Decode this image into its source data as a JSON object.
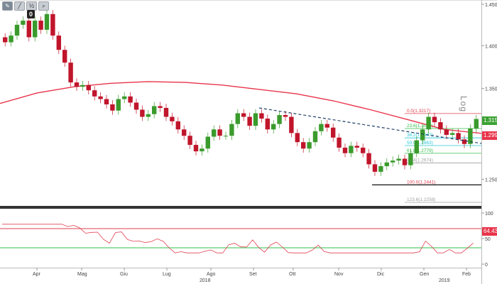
{
  "toolbar": {
    "buttons": [
      {
        "icon": "pencil-icon",
        "glyph": "✎"
      },
      {
        "icon": "line-tool-icon",
        "glyph": "╱"
      },
      {
        "icon": "fib-tool-icon",
        "glyph": "½"
      },
      {
        "icon": "zoom-icon",
        "glyph": "⌕"
      }
    ],
    "badge": "0"
  },
  "log_label": "Log",
  "colors": {
    "candle_up": "#3a9b2c",
    "candle_down": "#c0152b",
    "ma_line": "#e8344a",
    "trend_line": "#1f3f66",
    "rsi_line": "#e04050",
    "rsi_upper": "#e04050",
    "rsi_lower": "#32c04a",
    "fib_red": "#e04050",
    "fib_green": "#32c04a",
    "fib_cyan": "#27c8d8",
    "fib_gray": "#a0a0a0",
    "current_price_bg": "#3aa232",
    "ma_tag_bg": "#e8344a",
    "rsi_tag_bg": "#e8344a"
  },
  "tags": {
    "price": "1.3156",
    "ma": "1.2997",
    "rsi": "64.4317"
  },
  "chart_data": {
    "type": "candlestick",
    "scale": "log",
    "price_axis": {
      "ticks": [
        "1.4500",
        "1.4000",
        "1.3500",
        "1.2500"
      ],
      "range": [
        1.21,
        1.46
      ]
    },
    "rsi_axis": {
      "ticks": [
        "100",
        "50",
        "0"
      ],
      "range": [
        0,
        100
      ],
      "upper": 70,
      "lower": 30
    },
    "x_axis": {
      "months": [
        "Apr",
        "Mag",
        "Giu",
        "Lug",
        "Ago",
        "Set",
        "Ott",
        "Nov",
        "Dic",
        "Gen",
        "Feb"
      ],
      "years": [
        "2018",
        "2019"
      ]
    },
    "fib_levels": [
      {
        "label": "0.0(1.3217)",
        "value": 1.3217
      },
      {
        "label": "23.6(1.3050)",
        "value": 1.305
      },
      {
        "label": "38.2(1.2947)",
        "value": 1.2947
      },
      {
        "label": "50.0(1.2863)",
        "value": 1.2863
      },
      {
        "label": "61.8(1.2779)",
        "value": 1.2779
      },
      {
        "label": "76.4(1.2674)",
        "value": 1.2674
      },
      {
        "label": "100.0(1.2441)",
        "value": 1.2441
      },
      {
        "label": "123.6(1.2258)",
        "value": 1.2258
      }
    ],
    "moving_average": [
      1.333,
      1.345,
      1.352,
      1.356,
      1.358,
      1.357,
      1.354,
      1.349,
      1.344,
      1.336,
      1.326,
      1.315,
      1.304,
      1.2997
    ],
    "candles_close": [
      1.404,
      1.412,
      1.425,
      1.43,
      1.41,
      1.43,
      1.419,
      1.438,
      1.412,
      1.395,
      1.38,
      1.357,
      1.352,
      1.354,
      1.348,
      1.341,
      1.338,
      1.332,
      1.325,
      1.338,
      1.341,
      1.334,
      1.326,
      1.318,
      1.321,
      1.33,
      1.328,
      1.318,
      1.313,
      1.304,
      1.297,
      1.287,
      1.28,
      1.283,
      1.296,
      1.304,
      1.297,
      1.297,
      1.31,
      1.322,
      1.318,
      1.308,
      1.322,
      1.316,
      1.304,
      1.31,
      1.32,
      1.318,
      1.3,
      1.29,
      1.283,
      1.29,
      1.302,
      1.31,
      1.306,
      1.295,
      1.284,
      1.278,
      1.286,
      1.284,
      1.278,
      1.266,
      1.258,
      1.264,
      1.268,
      1.27,
      1.272,
      1.265,
      1.278,
      1.292,
      1.304,
      1.318,
      1.312,
      1.304,
      1.298,
      1.3,
      1.293,
      1.288,
      1.305,
      1.3156
    ]
  }
}
